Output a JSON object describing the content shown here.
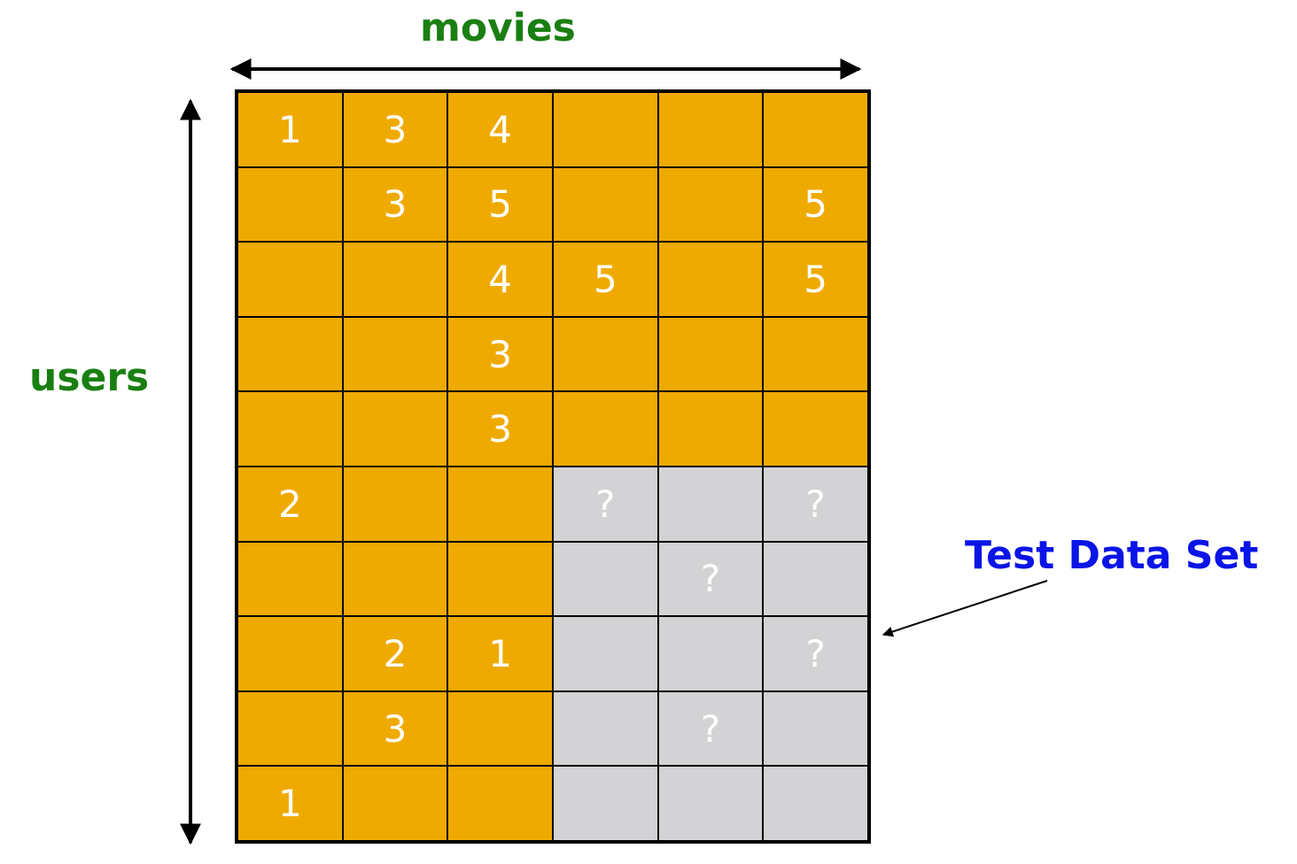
{
  "labels": {
    "movies": "movies",
    "users": "users",
    "test_data_set": "Test Data Set"
  },
  "colors": {
    "training_cell": "#efaa00",
    "test_cell": "#d3d3d5",
    "axis_label": "#1a7f12",
    "test_label": "#0a14e6",
    "cell_text": "#ffffff",
    "grid_lines": "#000000"
  },
  "matrix": {
    "rows": [
      [
        "1",
        "3",
        "4",
        "",
        "",
        ""
      ],
      [
        "",
        "3",
        "5",
        "",
        "",
        "5"
      ],
      [
        "",
        "",
        "4",
        "5",
        "",
        "5"
      ],
      [
        "",
        "",
        "3",
        "",
        "",
        ""
      ],
      [
        "",
        "",
        "3",
        "",
        "",
        ""
      ],
      [
        "2",
        "",
        "",
        "?",
        "",
        "?"
      ],
      [
        "",
        "",
        "",
        "",
        "?",
        ""
      ],
      [
        "",
        "2",
        "1",
        "",
        "",
        "?"
      ],
      [
        "",
        "3",
        "",
        "",
        "?",
        ""
      ],
      [
        "1",
        "",
        "",
        "",
        "",
        ""
      ]
    ],
    "test_region": {
      "first_row": 5,
      "first_col": 3
    }
  }
}
